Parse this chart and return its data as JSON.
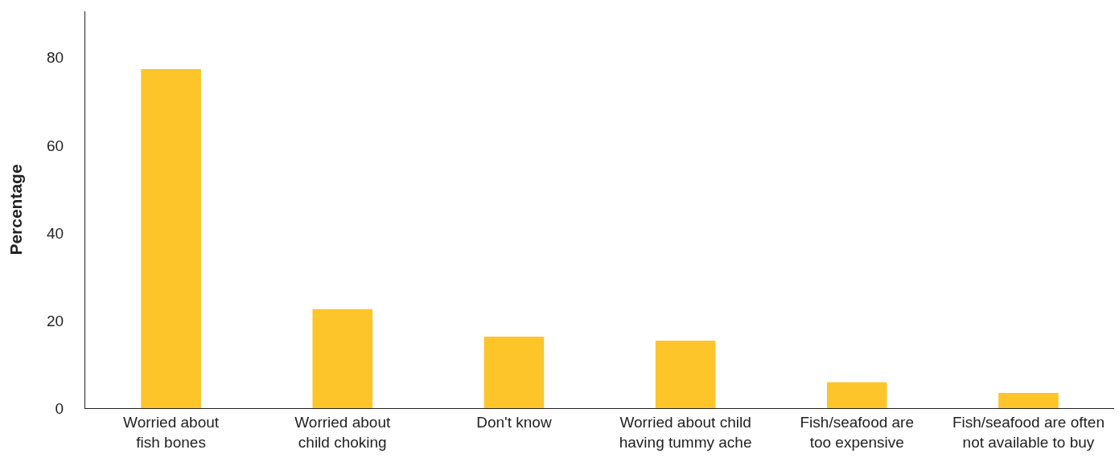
{
  "chart_data": {
    "type": "bar",
    "ylabel": "Percentage",
    "categories": [
      "Worried about\nfish bones",
      "Worried about\nchild choking",
      "Don't know",
      "Worried about child\nhaving tummy ache",
      "Fish/seafood are\ntoo expensive",
      "Fish/seafood are often\nnot available to buy"
    ],
    "values": [
      77.4,
      22.6,
      16.3,
      15.4,
      5.9,
      3.5
    ],
    "color": "#fdc52a",
    "ylim": [
      0,
      90.6
    ],
    "yticks": [
      0,
      20,
      40,
      60,
      80
    ]
  }
}
